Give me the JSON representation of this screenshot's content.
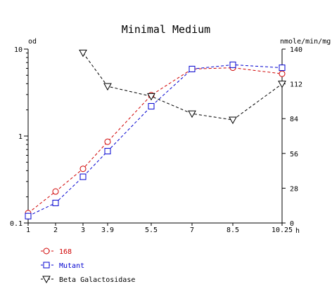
{
  "chart_data": {
    "type": "line",
    "title": "Minimal Medium",
    "xlabel": "h",
    "ylabel_left": "od",
    "ylabel_right": "nmole/min/mg",
    "x_ticks": [
      "1",
      "2",
      "3",
      "3.9",
      "5.5",
      "7",
      "8.5",
      "10.25"
    ],
    "y_left": {
      "scale": "log",
      "range": [
        0.1,
        10
      ],
      "ticks": [
        "10",
        "1",
        "0.1"
      ]
    },
    "y_right": {
      "scale": "linear",
      "range": [
        0,
        140
      ],
      "ticks": [
        "140",
        "112",
        "84",
        "56",
        "28",
        "0"
      ]
    },
    "grid": false,
    "legend_position": "bottom-left",
    "series": [
      {
        "name": "168",
        "axis": "left",
        "marker": "circle",
        "color": "#d00000",
        "x": [
          1,
          2,
          3,
          3.9,
          5.5,
          7,
          8.5,
          10.25
        ],
        "y": [
          0.13,
          0.23,
          0.42,
          0.86,
          2.95,
          5.9,
          6.1,
          5.2
        ]
      },
      {
        "name": "Mutant",
        "axis": "left",
        "marker": "square",
        "color": "#0000d0",
        "x": [
          1,
          2,
          3,
          3.9,
          5.5,
          7,
          8.5,
          10.25
        ],
        "y": [
          0.12,
          0.17,
          0.34,
          0.67,
          2.2,
          5.9,
          6.6,
          6.1
        ]
      },
      {
        "name": "Beta Galactosidase",
        "axis": "right",
        "marker": "triangle-down",
        "color": "#000000",
        "x": [
          3,
          3.9,
          5.5,
          7,
          8.5,
          10.25
        ],
        "y": [
          137,
          110,
          102,
          88,
          83,
          112
        ]
      }
    ]
  }
}
